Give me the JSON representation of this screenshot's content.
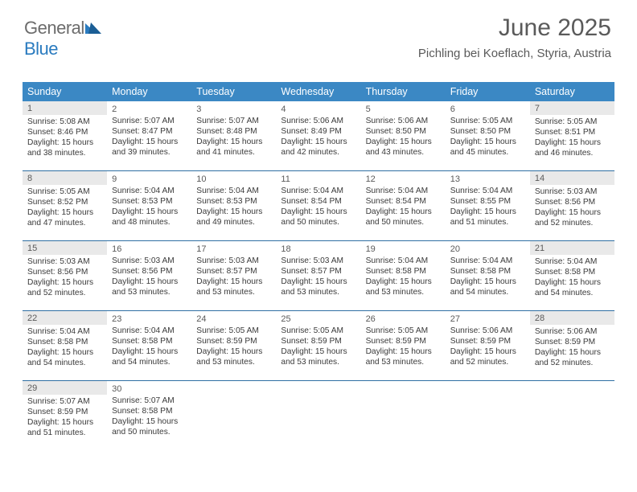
{
  "brand": {
    "part1": "General",
    "part2": "Blue"
  },
  "colors": {
    "header_bg": "#3b88c4",
    "rule": "#2f6fa3",
    "brand_gray": "#6c6c6c",
    "brand_blue": "#2a7bbf",
    "shade_bg": "#e9e9e9"
  },
  "title": "June 2025",
  "subtitle": "Pichling bei Koeflach, Styria, Austria",
  "day_names": [
    "Sunday",
    "Monday",
    "Tuesday",
    "Wednesday",
    "Thursday",
    "Friday",
    "Saturday"
  ],
  "weeks": [
    [
      {
        "n": "1",
        "shade": true,
        "sr": "Sunrise: 5:08 AM",
        "ss": "Sunset: 8:46 PM",
        "d1": "Daylight: 15 hours",
        "d2": "and 38 minutes."
      },
      {
        "n": "2",
        "sr": "Sunrise: 5:07 AM",
        "ss": "Sunset: 8:47 PM",
        "d1": "Daylight: 15 hours",
        "d2": "and 39 minutes."
      },
      {
        "n": "3",
        "sr": "Sunrise: 5:07 AM",
        "ss": "Sunset: 8:48 PM",
        "d1": "Daylight: 15 hours",
        "d2": "and 41 minutes."
      },
      {
        "n": "4",
        "sr": "Sunrise: 5:06 AM",
        "ss": "Sunset: 8:49 PM",
        "d1": "Daylight: 15 hours",
        "d2": "and 42 minutes."
      },
      {
        "n": "5",
        "sr": "Sunrise: 5:06 AM",
        "ss": "Sunset: 8:50 PM",
        "d1": "Daylight: 15 hours",
        "d2": "and 43 minutes."
      },
      {
        "n": "6",
        "sr": "Sunrise: 5:05 AM",
        "ss": "Sunset: 8:50 PM",
        "d1": "Daylight: 15 hours",
        "d2": "and 45 minutes."
      },
      {
        "n": "7",
        "shade": true,
        "sr": "Sunrise: 5:05 AM",
        "ss": "Sunset: 8:51 PM",
        "d1": "Daylight: 15 hours",
        "d2": "and 46 minutes."
      }
    ],
    [
      {
        "n": "8",
        "shade": true,
        "sr": "Sunrise: 5:05 AM",
        "ss": "Sunset: 8:52 PM",
        "d1": "Daylight: 15 hours",
        "d2": "and 47 minutes."
      },
      {
        "n": "9",
        "sr": "Sunrise: 5:04 AM",
        "ss": "Sunset: 8:53 PM",
        "d1": "Daylight: 15 hours",
        "d2": "and 48 minutes."
      },
      {
        "n": "10",
        "sr": "Sunrise: 5:04 AM",
        "ss": "Sunset: 8:53 PM",
        "d1": "Daylight: 15 hours",
        "d2": "and 49 minutes."
      },
      {
        "n": "11",
        "sr": "Sunrise: 5:04 AM",
        "ss": "Sunset: 8:54 PM",
        "d1": "Daylight: 15 hours",
        "d2": "and 50 minutes."
      },
      {
        "n": "12",
        "sr": "Sunrise: 5:04 AM",
        "ss": "Sunset: 8:54 PM",
        "d1": "Daylight: 15 hours",
        "d2": "and 50 minutes."
      },
      {
        "n": "13",
        "sr": "Sunrise: 5:04 AM",
        "ss": "Sunset: 8:55 PM",
        "d1": "Daylight: 15 hours",
        "d2": "and 51 minutes."
      },
      {
        "n": "14",
        "shade": true,
        "sr": "Sunrise: 5:03 AM",
        "ss": "Sunset: 8:56 PM",
        "d1": "Daylight: 15 hours",
        "d2": "and 52 minutes."
      }
    ],
    [
      {
        "n": "15",
        "shade": true,
        "sr": "Sunrise: 5:03 AM",
        "ss": "Sunset: 8:56 PM",
        "d1": "Daylight: 15 hours",
        "d2": "and 52 minutes."
      },
      {
        "n": "16",
        "sr": "Sunrise: 5:03 AM",
        "ss": "Sunset: 8:56 PM",
        "d1": "Daylight: 15 hours",
        "d2": "and 53 minutes."
      },
      {
        "n": "17",
        "sr": "Sunrise: 5:03 AM",
        "ss": "Sunset: 8:57 PM",
        "d1": "Daylight: 15 hours",
        "d2": "and 53 minutes."
      },
      {
        "n": "18",
        "sr": "Sunrise: 5:03 AM",
        "ss": "Sunset: 8:57 PM",
        "d1": "Daylight: 15 hours",
        "d2": "and 53 minutes."
      },
      {
        "n": "19",
        "sr": "Sunrise: 5:04 AM",
        "ss": "Sunset: 8:58 PM",
        "d1": "Daylight: 15 hours",
        "d2": "and 53 minutes."
      },
      {
        "n": "20",
        "sr": "Sunrise: 5:04 AM",
        "ss": "Sunset: 8:58 PM",
        "d1": "Daylight: 15 hours",
        "d2": "and 54 minutes."
      },
      {
        "n": "21",
        "shade": true,
        "sr": "Sunrise: 5:04 AM",
        "ss": "Sunset: 8:58 PM",
        "d1": "Daylight: 15 hours",
        "d2": "and 54 minutes."
      }
    ],
    [
      {
        "n": "22",
        "shade": true,
        "sr": "Sunrise: 5:04 AM",
        "ss": "Sunset: 8:58 PM",
        "d1": "Daylight: 15 hours",
        "d2": "and 54 minutes."
      },
      {
        "n": "23",
        "sr": "Sunrise: 5:04 AM",
        "ss": "Sunset: 8:58 PM",
        "d1": "Daylight: 15 hours",
        "d2": "and 54 minutes."
      },
      {
        "n": "24",
        "sr": "Sunrise: 5:05 AM",
        "ss": "Sunset: 8:59 PM",
        "d1": "Daylight: 15 hours",
        "d2": "and 53 minutes."
      },
      {
        "n": "25",
        "sr": "Sunrise: 5:05 AM",
        "ss": "Sunset: 8:59 PM",
        "d1": "Daylight: 15 hours",
        "d2": "and 53 minutes."
      },
      {
        "n": "26",
        "sr": "Sunrise: 5:05 AM",
        "ss": "Sunset: 8:59 PM",
        "d1": "Daylight: 15 hours",
        "d2": "and 53 minutes."
      },
      {
        "n": "27",
        "sr": "Sunrise: 5:06 AM",
        "ss": "Sunset: 8:59 PM",
        "d1": "Daylight: 15 hours",
        "d2": "and 52 minutes."
      },
      {
        "n": "28",
        "shade": true,
        "sr": "Sunrise: 5:06 AM",
        "ss": "Sunset: 8:59 PM",
        "d1": "Daylight: 15 hours",
        "d2": "and 52 minutes."
      }
    ],
    [
      {
        "n": "29",
        "shade": true,
        "sr": "Sunrise: 5:07 AM",
        "ss": "Sunset: 8:59 PM",
        "d1": "Daylight: 15 hours",
        "d2": "and 51 minutes."
      },
      {
        "n": "30",
        "sr": "Sunrise: 5:07 AM",
        "ss": "Sunset: 8:58 PM",
        "d1": "Daylight: 15 hours",
        "d2": "and 50 minutes."
      },
      null,
      null,
      null,
      null,
      null
    ]
  ]
}
